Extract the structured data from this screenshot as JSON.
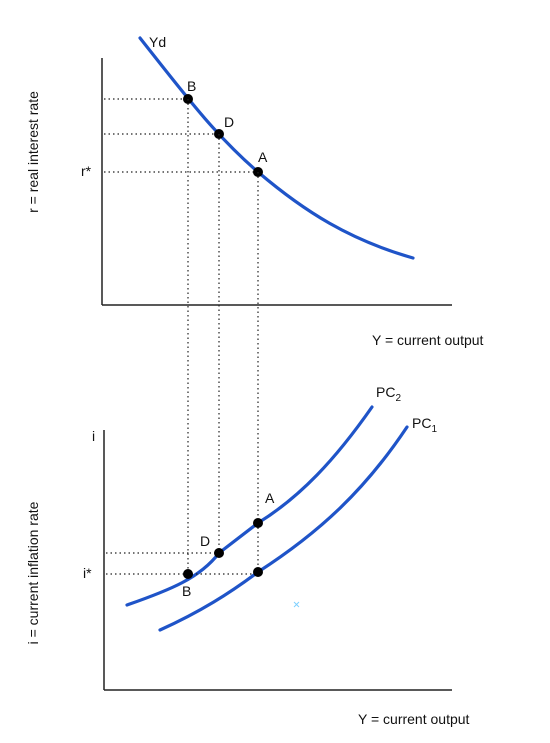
{
  "top_panel": {
    "ylabel": "r = real interest rate",
    "xlabel": "Y = current output",
    "curve_label": "Yd",
    "tick_label": "r*",
    "points": [
      "B",
      "D",
      "A"
    ]
  },
  "bottom_panel": {
    "ylabel": "i = current inflation rate",
    "xlabel": "Y = current output",
    "axis_top_label": "i",
    "tick_label": "i*",
    "curve_pc2": {
      "base": "PC",
      "sub": "2"
    },
    "curve_pc1": {
      "base": "PC",
      "sub": "1"
    },
    "points": [
      "A",
      "D",
      "B"
    ]
  },
  "colors": {
    "curve": "#1f54c8",
    "axis": "#222222",
    "point": "#000000"
  }
}
